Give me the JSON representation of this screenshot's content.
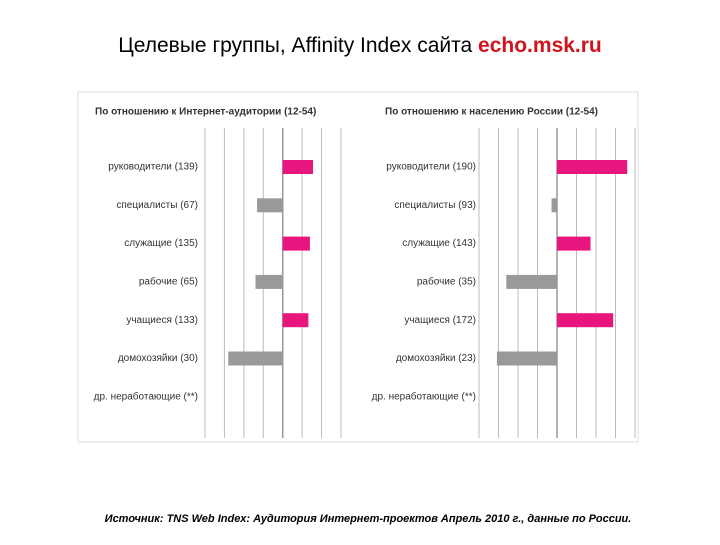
{
  "header": {
    "title": "Целевые группы, Affinity Index сайта ",
    "highlight": "echo.msk.ru"
  },
  "chart_data": [
    {
      "type": "bar",
      "orientation": "horizontal",
      "title": "По отношению к Интернет-аудитории (12-54)",
      "categories": [
        "руководители (139)",
        "специалисты (67)",
        "служащие (135)",
        "рабочие (65)",
        "учащиеся (133)",
        "домохозяйки (30)",
        "др. неработающие (**)"
      ],
      "values": [
        139,
        67,
        135,
        65,
        133,
        30,
        null
      ],
      "colors": [
        "#e8157f",
        "#999999",
        "#e8157f",
        "#999999",
        "#e8157f",
        "#999999",
        "#999999"
      ],
      "baseline": 100,
      "xlim": [
        0,
        175
      ],
      "xticks": [
        0,
        25,
        50,
        75,
        100,
        125,
        150,
        175
      ],
      "grid": true
    },
    {
      "type": "bar",
      "orientation": "horizontal",
      "title": "По отношению к населению России (12-54)",
      "categories": [
        "руководители (190)",
        "специалисты (93)",
        "служащие (143)",
        "рабочие (35)",
        "учащиеся (172)",
        "домохозяйки (23)",
        "др. неработающие (**)"
      ],
      "values": [
        190,
        93,
        143,
        35,
        172,
        23,
        null
      ],
      "colors": [
        "#e8157f",
        "#999999",
        "#e8157f",
        "#999999",
        "#e8157f",
        "#999999",
        "#999999"
      ],
      "baseline": 100,
      "xlim": [
        0,
        200
      ],
      "xticks": [
        0,
        25,
        50,
        75,
        100,
        125,
        150,
        175,
        200
      ],
      "grid": true
    }
  ],
  "footer": {
    "source": "Источник: TNS Web Index: Аудитория Интернет-проектов Апрель 2010 г., данные по России."
  }
}
